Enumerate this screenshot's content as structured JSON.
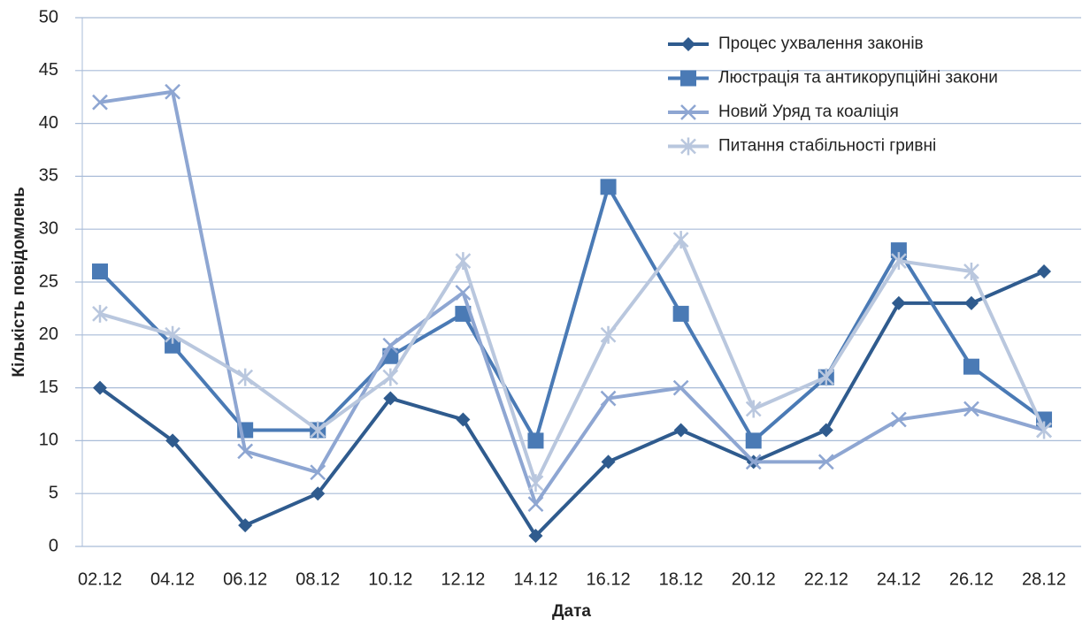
{
  "chart_data": {
    "type": "line",
    "x_label": "Дата",
    "y_label": "Кількість повідомлень",
    "categories": [
      "02.12",
      "04.12",
      "06.12",
      "08.12",
      "10.12",
      "12.12",
      "14.12",
      "16.12",
      "18.12",
      "20.12",
      "22.12",
      "24.12",
      "26.12",
      "28.12"
    ],
    "series": [
      {
        "name": "Процес ухвалення законів",
        "color": "#2f5b8e",
        "marker": "diamond",
        "values": [
          15,
          10,
          2,
          5,
          14,
          12,
          1,
          8,
          11,
          8,
          11,
          23,
          23,
          26
        ]
      },
      {
        "name": "Люстрація та антикорупційні закони",
        "color": "#4a7ab5",
        "marker": "square",
        "values": [
          26,
          19,
          11,
          11,
          18,
          22,
          10,
          34,
          22,
          10,
          16,
          28,
          17,
          12
        ]
      },
      {
        "name": "Новий Уряд та коаліція",
        "color": "#8ea6d2",
        "marker": "x",
        "values": [
          42,
          43,
          9,
          7,
          19,
          24,
          4,
          14,
          15,
          8,
          8,
          12,
          13,
          11
        ]
      },
      {
        "name": "Питання стабільності гривні",
        "color": "#b9c7de",
        "marker": "star",
        "values": [
          22,
          20,
          16,
          11,
          16,
          27,
          6,
          20,
          29,
          13,
          16,
          27,
          26,
          11
        ]
      }
    ],
    "ylim": [
      0,
      50
    ],
    "yticks": [
      0,
      5,
      10,
      15,
      20,
      25,
      30,
      35,
      40,
      45,
      50
    ],
    "grid": true,
    "legend": "top-right"
  }
}
